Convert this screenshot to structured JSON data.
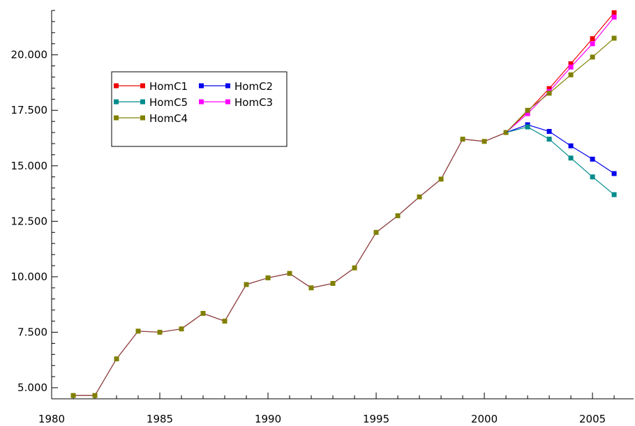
{
  "chart_data": {
    "type": "line",
    "title": "",
    "xlabel": "",
    "ylabel": "",
    "xlim": [
      1980,
      2006.9
    ],
    "ylim": [
      4500,
      22000
    ],
    "x_ticks": [
      {
        "value": 1980,
        "label": "1980"
      },
      {
        "value": 1985,
        "label": "1985"
      },
      {
        "value": 1990,
        "label": "1990"
      },
      {
        "value": 1995,
        "label": "1995"
      },
      {
        "value": 2000,
        "label": "2000"
      },
      {
        "value": 2005,
        "label": "2005"
      }
    ],
    "y_ticks": [
      {
        "value": 5000,
        "label": "5.000"
      },
      {
        "value": 7500,
        "label": "7.500"
      },
      {
        "value": 10000,
        "label": "10.000"
      },
      {
        "value": 12500,
        "label": "12.500"
      },
      {
        "value": 15000,
        "label": "15.000"
      },
      {
        "value": 17500,
        "label": "17.500"
      },
      {
        "value": 20000,
        "label": "20.000"
      }
    ],
    "grid": false,
    "legend_position": "top-left",
    "history": {
      "x": [
        1981,
        1982,
        1983,
        1984,
        1985,
        1986,
        1987,
        1988,
        1989,
        1990,
        1991,
        1992,
        1993,
        1994,
        1995,
        1996,
        1997,
        1998,
        1999,
        2000,
        2001
      ],
      "values": [
        4650,
        4650,
        6300,
        7550,
        7500,
        7650,
        8350,
        8000,
        9650,
        9950,
        10150,
        9500,
        9700,
        10400,
        12000,
        12750,
        13600,
        14400,
        16200,
        16100,
        16500
      ]
    },
    "projection_x": [
      2001,
      2002,
      2003,
      2004,
      2005,
      2006
    ],
    "series": [
      {
        "name": "HomC1",
        "color": "#ee0000",
        "values": [
          16500,
          17450,
          18480,
          19600,
          20730,
          21900
        ]
      },
      {
        "name": "HomC2",
        "color": "#0000ee",
        "values": [
          16500,
          16850,
          16550,
          15900,
          15300,
          14650
        ]
      },
      {
        "name": "HomC5",
        "color": "#008b8b",
        "values": [
          16500,
          16750,
          16200,
          15350,
          14500,
          13700
        ]
      },
      {
        "name": "HomC3",
        "color": "#ff00ff",
        "values": [
          16500,
          17350,
          18350,
          19450,
          20500,
          21700
        ]
      },
      {
        "name": "HomC4",
        "color": "#808000",
        "values": [
          16500,
          17500,
          18270,
          19100,
          19900,
          20750
        ]
      }
    ],
    "history_line_color": "#8b3a3a",
    "history_marker_color": "#808000"
  }
}
